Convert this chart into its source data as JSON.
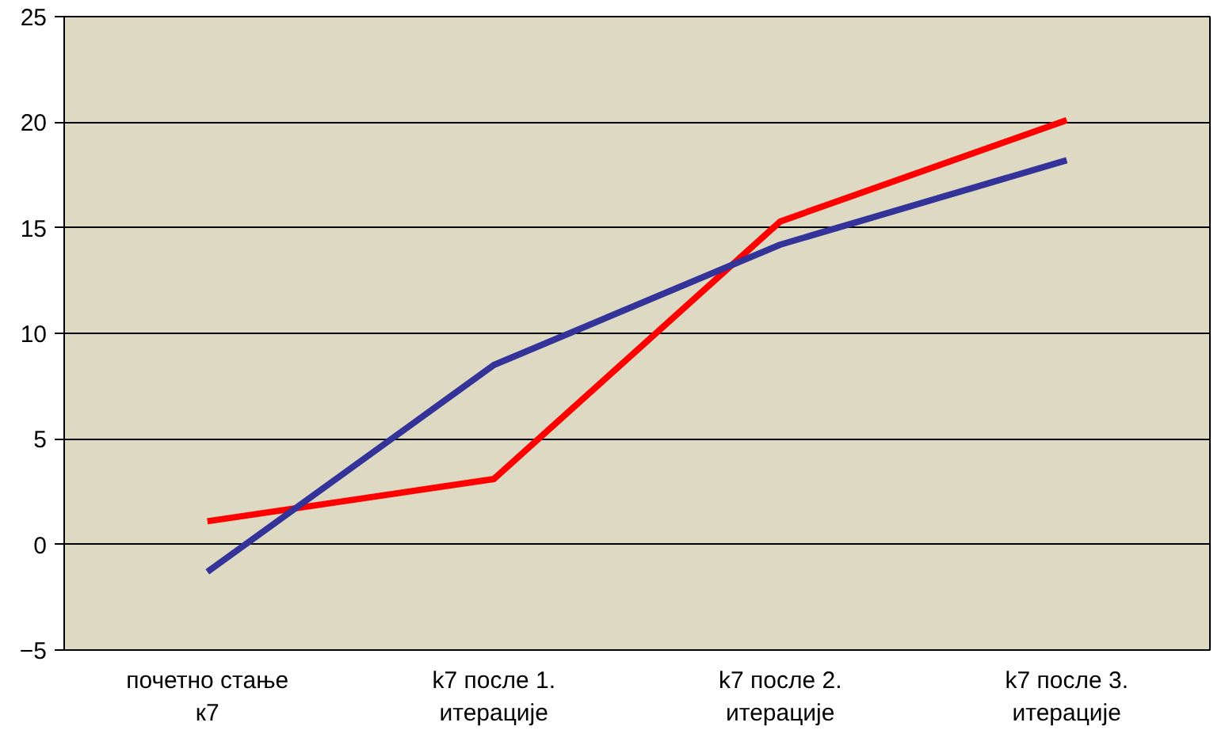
{
  "chart_data": {
    "type": "line",
    "categories": [
      "почетно стање\nк7",
      "k7 после 1.\nитерације",
      "k7 после 2.\nитерације",
      "k7 после 3.\nитерације"
    ],
    "series": [
      {
        "color": "#ff0000",
        "values": [
          1.1,
          3.1,
          15.3,
          20.1
        ]
      },
      {
        "color": "#333399",
        "values": [
          -1.3,
          8.5,
          14.2,
          18.2
        ]
      }
    ],
    "ylim": [
      -5,
      25
    ],
    "yticks": [
      -5,
      0,
      5,
      10,
      15,
      20,
      25
    ],
    "grid": "y",
    "marker": "none",
    "line_style": "solid"
  }
}
